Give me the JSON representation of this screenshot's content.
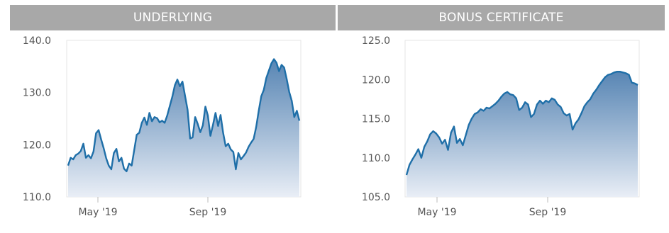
{
  "colors": {
    "header_bg": "#a8a8a8",
    "line": "#1f6fa8",
    "area_top": "#4f7fb0",
    "area_bottom": "#e9eef6"
  },
  "chart_data": [
    {
      "type": "area",
      "title": "UNDERLYING",
      "ylim": [
        110,
        140
      ],
      "yticks": [
        "110.0",
        "120.0",
        "130.0",
        "140.0"
      ],
      "xticks": [
        "May '19",
        "Sep '19"
      ],
      "series": [
        {
          "values": [
            116.0,
            117.5,
            117.2,
            118.0,
            118.3,
            118.8,
            120.2,
            117.5,
            118.0,
            117.4,
            118.7,
            122.2,
            122.8,
            121.0,
            119.3,
            117.4,
            116.0,
            115.3,
            118.4,
            119.2,
            116.8,
            117.5,
            115.4,
            114.9,
            116.4,
            116.0,
            118.9,
            121.9,
            122.3,
            124.2,
            125.2,
            123.8,
            126.1,
            124.5,
            125.3,
            125.1,
            124.3,
            124.6,
            124.2,
            125.6,
            127.4,
            129.2,
            131.4,
            132.5,
            131.2,
            132.1,
            129.4,
            126.7,
            121.2,
            121.4,
            125.3,
            124.0,
            122.4,
            123.7,
            127.3,
            125.6,
            121.7,
            123.8,
            126.1,
            123.6,
            125.7,
            122.3,
            119.7,
            120.2,
            119.1,
            118.6,
            115.3,
            118.4,
            117.2,
            117.8,
            118.5,
            119.6,
            120.4,
            121.1,
            123.4,
            126.5,
            129.3,
            130.5,
            132.8,
            134.2,
            135.6,
            136.4,
            135.7,
            134.1,
            135.3,
            134.8,
            132.6,
            130.1,
            128.4,
            125.3,
            126.5,
            124.6
          ]
        }
      ]
    },
    {
      "type": "area",
      "title": "BONUS CERTIFICATE",
      "ylim": [
        105,
        125
      ],
      "yticks": [
        "105.0",
        "110.0",
        "115.0",
        "120.0",
        "125.0"
      ],
      "xticks": [
        "May '19",
        "Sep '19"
      ],
      "series": [
        {
          "values": [
            107.8,
            109.1,
            109.8,
            110.4,
            111.1,
            110.0,
            111.4,
            112.1,
            113.0,
            113.4,
            113.1,
            112.6,
            111.8,
            112.3,
            111.0,
            113.2,
            114.0,
            111.9,
            112.4,
            111.6,
            112.9,
            114.2,
            115.0,
            115.6,
            115.8,
            116.2,
            116.0,
            116.4,
            116.3,
            116.6,
            116.9,
            117.3,
            117.8,
            118.2,
            118.4,
            118.1,
            118.0,
            117.6,
            116.1,
            116.4,
            117.1,
            116.8,
            115.2,
            115.6,
            116.8,
            117.3,
            116.9,
            117.3,
            117.1,
            117.6,
            117.4,
            116.8,
            116.5,
            115.7,
            115.4,
            115.6,
            113.6,
            114.4,
            114.9,
            115.7,
            116.6,
            117.1,
            117.5,
            118.2,
            118.7,
            119.3,
            119.8,
            120.3,
            120.6,
            120.7,
            120.9,
            121.0,
            121.0,
            120.9,
            120.8,
            120.6,
            119.6,
            119.5,
            119.3
          ]
        }
      ]
    }
  ],
  "panels": {
    "left_header": "UNDERLYING",
    "right_header": "BONUS CERTIFICATE"
  }
}
